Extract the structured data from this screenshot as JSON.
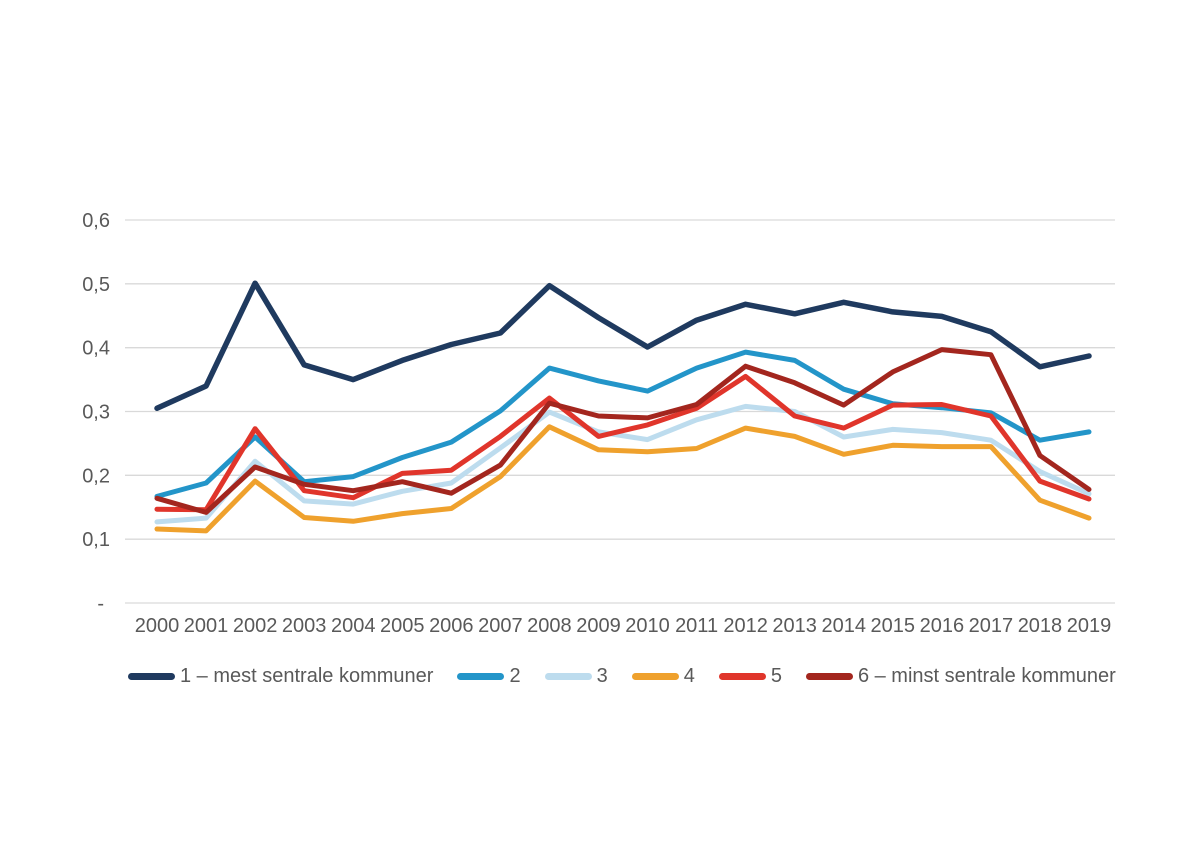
{
  "chart_data": {
    "type": "line",
    "x": [
      2000,
      2001,
      2002,
      2003,
      2004,
      2005,
      2006,
      2007,
      2008,
      2009,
      2010,
      2011,
      2012,
      2013,
      2014,
      2015,
      2016,
      2017,
      2018,
      2019
    ],
    "series": [
      {
        "name": "1 – mest sentrale kommuner",
        "color": "#1F3A5F",
        "values": [
          0.305,
          0.34,
          0.501,
          0.373,
          0.35,
          0.38,
          0.405,
          0.423,
          0.497,
          0.447,
          0.401,
          0.443,
          0.468,
          0.453,
          0.471,
          0.456,
          0.449,
          0.425,
          0.37,
          0.387
        ]
      },
      {
        "name": "2",
        "color": "#2395C9",
        "values": [
          0.167,
          0.188,
          0.26,
          0.19,
          0.198,
          0.228,
          0.252,
          0.301,
          0.368,
          0.348,
          0.332,
          0.368,
          0.393,
          0.38,
          0.335,
          0.312,
          0.306,
          0.298,
          0.255,
          0.268
        ]
      },
      {
        "name": "3",
        "color": "#BDDCEE",
        "values": [
          0.127,
          0.133,
          0.222,
          0.16,
          0.155,
          0.175,
          0.188,
          0.243,
          0.299,
          0.268,
          0.256,
          0.287,
          0.308,
          0.3,
          0.26,
          0.272,
          0.267,
          0.255,
          0.206,
          0.171
        ]
      },
      {
        "name": "4",
        "color": "#EFA12D",
        "values": [
          0.116,
          0.113,
          0.191,
          0.134,
          0.128,
          0.14,
          0.148,
          0.198,
          0.276,
          0.24,
          0.237,
          0.242,
          0.274,
          0.261,
          0.233,
          0.247,
          0.245,
          0.245,
          0.161,
          0.133
        ]
      },
      {
        "name": "5",
        "color": "#E0352B",
        "values": [
          0.147,
          0.146,
          0.273,
          0.176,
          0.165,
          0.203,
          0.208,
          0.261,
          0.321,
          0.261,
          0.279,
          0.305,
          0.355,
          0.293,
          0.274,
          0.31,
          0.311,
          0.293,
          0.191,
          0.163
        ]
      },
      {
        "name": "6 – minst sentrale kommuner",
        "color": "#A3261E",
        "values": [
          0.164,
          0.142,
          0.213,
          0.186,
          0.176,
          0.19,
          0.172,
          0.216,
          0.313,
          0.293,
          0.29,
          0.311,
          0.371,
          0.345,
          0.31,
          0.362,
          0.397,
          0.389,
          0.231,
          0.178
        ]
      }
    ],
    "title": "",
    "xlabel": "",
    "ylabel": "",
    "ylim": [
      0,
      0.6
    ],
    "ytick_step": 0.1,
    "ytick_labels": [
      "-",
      "0,1",
      "0,2",
      "0,3",
      "0,4",
      "0,5",
      "0,6"
    ],
    "grid": true,
    "legend_position": "bottom"
  },
  "style": {
    "gridline_color": "#D9D9D9",
    "text_color": "#595959",
    "background": "#FFFFFF"
  }
}
